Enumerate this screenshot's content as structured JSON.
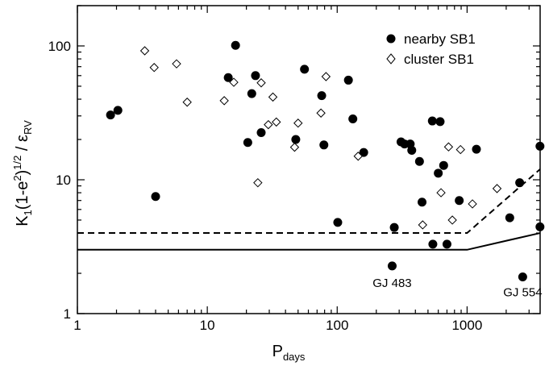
{
  "chart_data": {
    "type": "scatter",
    "xscale": "log",
    "yscale": "log",
    "xlim": [
      1,
      3650
    ],
    "ylim": [
      1,
      200
    ],
    "x_ticks": [
      1,
      10,
      100,
      1000
    ],
    "y_ticks": [
      1,
      10,
      100
    ],
    "x_tick_labels": [
      "1",
      "10",
      "100",
      "1000"
    ],
    "y_tick_labels": [
      "1",
      "10",
      "100"
    ],
    "xlabel": {
      "main": "P",
      "sub": "days"
    },
    "ylabel": {
      "p1": "K",
      "s1": "1",
      "p2": "(1-e",
      "sup2": "2",
      "p3": ")",
      "sup1": "1/2",
      "p4": " / ε",
      "s2": "RV"
    },
    "legend": {
      "position": "top-right",
      "entries": [
        {
          "label": "nearby SB1",
          "marker": "filled-circle"
        },
        {
          "label": "cluster SB1",
          "marker": "open-diamond"
        }
      ]
    },
    "series": [
      {
        "name": "nearby SB1",
        "marker": "filled-circle",
        "color": "#000000",
        "points": [
          [
            1.8,
            30.5
          ],
          [
            2.05,
            33
          ],
          [
            4.0,
            7.5
          ],
          [
            14.5,
            58
          ],
          [
            16.5,
            101
          ],
          [
            20.5,
            19
          ],
          [
            22,
            44
          ],
          [
            23.5,
            60
          ],
          [
            26,
            22.5
          ],
          [
            48,
            20
          ],
          [
            56,
            67
          ],
          [
            76,
            42.5
          ],
          [
            79,
            18.2
          ],
          [
            101,
            4.8
          ],
          [
            122,
            55.5
          ],
          [
            132,
            28.5
          ],
          [
            160,
            16
          ],
          [
            275,
            4.4
          ],
          [
            310,
            19.2
          ],
          [
            330,
            18.5
          ],
          [
            365,
            18.5
          ],
          [
            375,
            16.6
          ],
          [
            430,
            13.7
          ],
          [
            450,
            6.8
          ],
          [
            540,
            27.5
          ],
          [
            545,
            3.3
          ],
          [
            600,
            11.2
          ],
          [
            620,
            27.2
          ],
          [
            660,
            12.8
          ],
          [
            700,
            3.3
          ],
          [
            870,
            7.0
          ],
          [
            1180,
            16.9
          ],
          [
            2130,
            5.2
          ],
          [
            2540,
            9.5
          ],
          [
            3640,
            17.8
          ],
          [
            3640,
            4.45
          ],
          [
            265,
            2.27
          ],
          [
            2680,
            1.88
          ]
        ]
      },
      {
        "name": "cluster SB1",
        "marker": "open-diamond",
        "color": "#000000",
        "points": [
          [
            3.3,
            92
          ],
          [
            3.9,
            69
          ],
          [
            5.8,
            73.5
          ],
          [
            7.0,
            38
          ],
          [
            13.5,
            39
          ],
          [
            16.0,
            53.5
          ],
          [
            24.5,
            9.5
          ],
          [
            26.0,
            53
          ],
          [
            29.5,
            25.8
          ],
          [
            32,
            41.5
          ],
          [
            34,
            27
          ],
          [
            47,
            17.5
          ],
          [
            50,
            26.5
          ],
          [
            75,
            31.5
          ],
          [
            82,
            59
          ],
          [
            145,
            15
          ],
          [
            455,
            4.6
          ],
          [
            630,
            8.0
          ],
          [
            720,
            17.6
          ],
          [
            770,
            5.0
          ],
          [
            890,
            16.8
          ],
          [
            1100,
            6.6
          ],
          [
            1700,
            8.6
          ]
        ]
      }
    ],
    "lines": [
      {
        "style": "dashed",
        "points": [
          [
            1,
            4
          ],
          [
            1000,
            4
          ],
          [
            3650,
            12
          ]
        ]
      },
      {
        "style": "solid",
        "points": [
          [
            1,
            3
          ],
          [
            1000,
            3
          ],
          [
            3650,
            4
          ]
        ]
      }
    ],
    "annotations": [
      {
        "text": "GJ 483",
        "x": 265,
        "y": 1.58
      },
      {
        "text": "GJ 554",
        "x": 2680,
        "y": 1.35
      }
    ]
  }
}
